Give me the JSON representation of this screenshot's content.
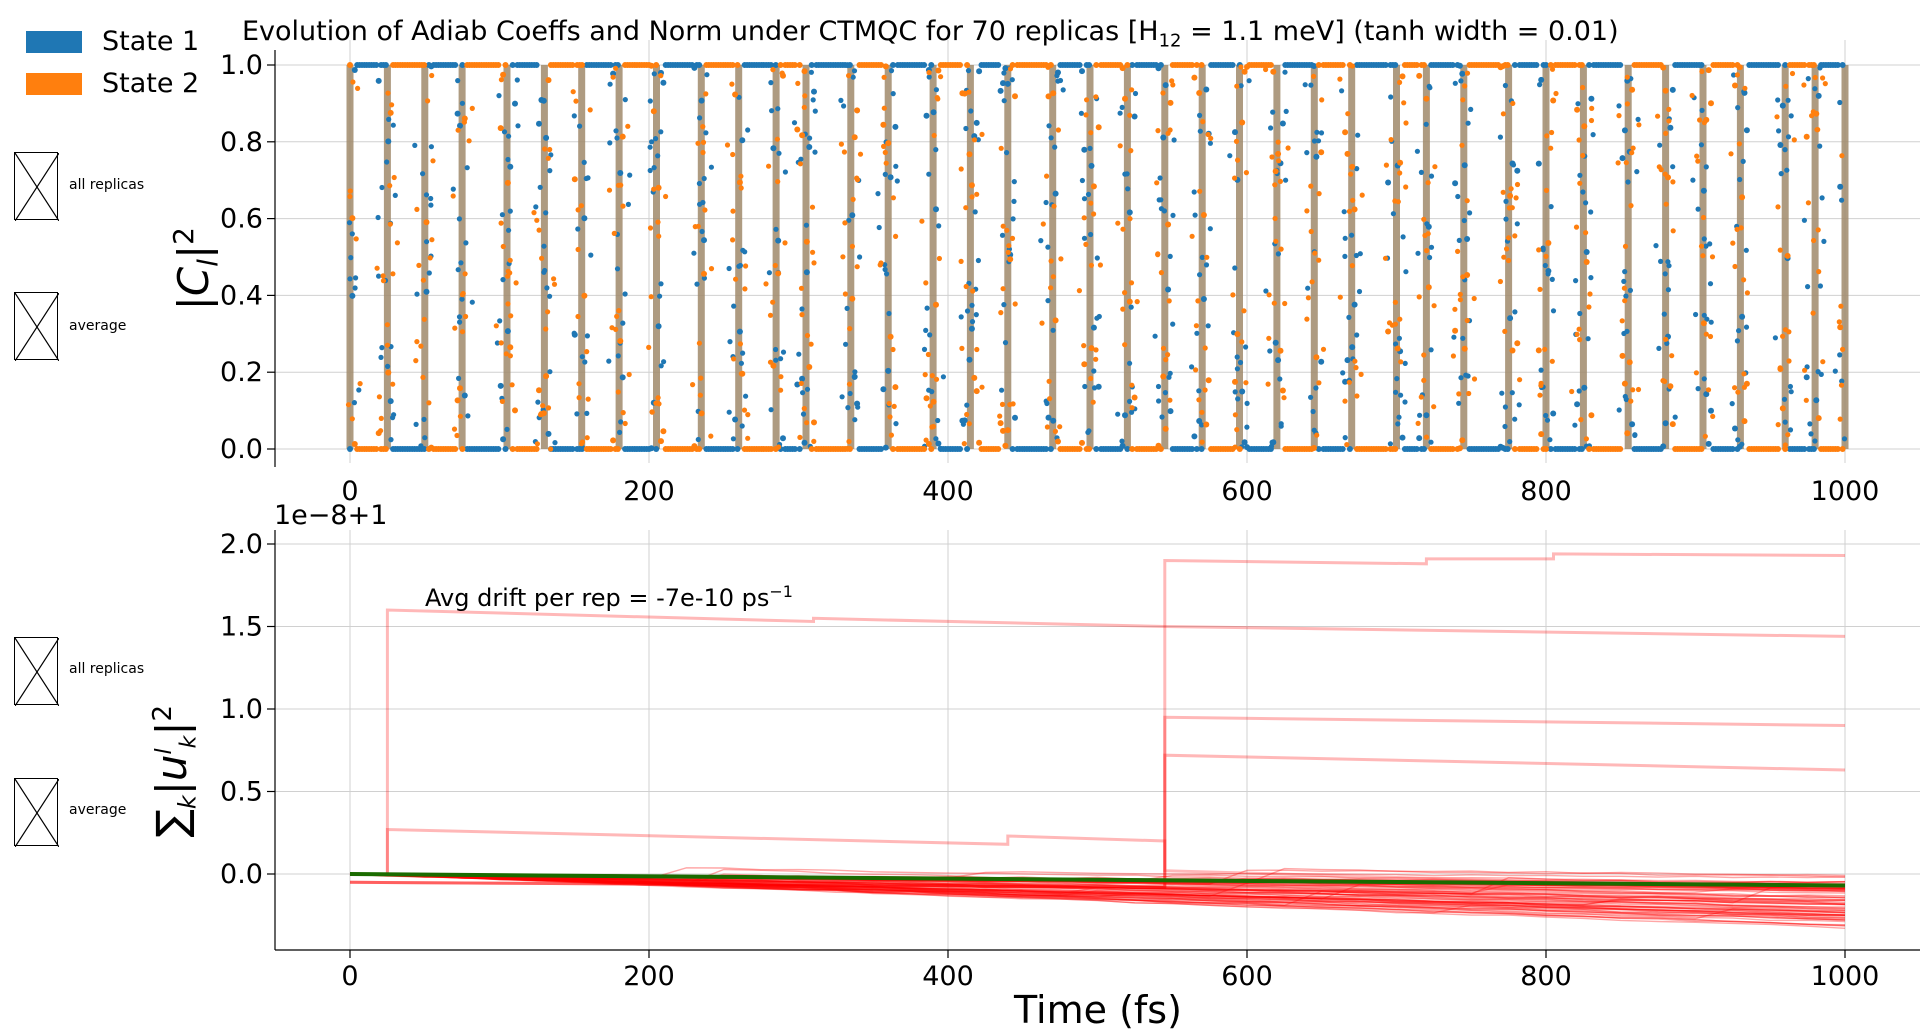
{
  "chart_data": [
    {
      "type": "scatter",
      "title_main": "Evolution of Adiab Coeffs and Norm under CTMQC for 70 replicas [H",
      "title_sub": "12",
      "title_rest": " = 1.1 meV]   (tanh width = 0.01)",
      "ylabel": "|C_l|^2",
      "xlim": [
        0,
        1000
      ],
      "ylim": [
        0,
        1
      ],
      "xticks": [
        "0",
        "200",
        "400",
        "600",
        "800",
        "1000"
      ],
      "yticks": [
        "0.0",
        "0.2",
        "0.4",
        "0.6",
        "0.8",
        "1.0"
      ],
      "grid": true,
      "legend": [
        "State 1",
        "State 2"
      ],
      "legend_placement": "top-left outside",
      "colors": {
        "state1": "#1f77b4",
        "state2": "#ff7f0e",
        "average": "#a0896b"
      },
      "hop_times": [
        0,
        25,
        50,
        75,
        105,
        130,
        155,
        180,
        205,
        235,
        260,
        285,
        305,
        335,
        360,
        390,
        415,
        440,
        470,
        495,
        520,
        545,
        570,
        595,
        620,
        645,
        670,
        700,
        720,
        745,
        775,
        800,
        825,
        855,
        880,
        905,
        930,
        960,
        980,
        1000
      ],
      "series": [
        {
          "name": "State 1",
          "values_description": "population alternates between 0 and 1"
        },
        {
          "name": "State 2",
          "values_description": "complement of State 1"
        }
      ],
      "side_labels": [
        "all replicas",
        "average"
      ]
    },
    {
      "type": "line",
      "offset_text": "1e−8+1",
      "xlabel": "Time (fs)",
      "ylabel": "∑|u_k^l|^2",
      "annotation": "Avg drift per rep = -7e-10 ps",
      "annotation_sup": "−1",
      "xlim": [
        0,
        1000
      ],
      "ylim": [
        -0.45,
        2.05
      ],
      "xticks": [
        "0",
        "200",
        "400",
        "600",
        "800",
        "1000"
      ],
      "yticks": [
        "0.0",
        "0.5",
        "1.0",
        "1.5",
        "2.0"
      ],
      "grid": true,
      "colors": {
        "replicas": "#ff0000",
        "average": "#1a6b00"
      },
      "highlighted_replicas": [
        {
          "x": [
            0,
            25,
            25,
            310,
            310,
            545,
            545,
            1000
          ],
          "y": [
            0,
            0,
            1.6,
            1.53,
            1.55,
            1.5,
            1.5,
            1.44
          ]
        },
        {
          "x": [
            0,
            545,
            545,
            720,
            720,
            805,
            805,
            1000
          ],
          "y": [
            -0.05,
            -0.08,
            1.9,
            1.88,
            1.91,
            1.91,
            1.94,
            1.93
          ]
        },
        {
          "x": [
            0,
            545,
            545,
            1000
          ],
          "y": [
            -0.05,
            -0.08,
            0.95,
            0.9
          ]
        },
        {
          "x": [
            0,
            545,
            545,
            1000
          ],
          "y": [
            -0.05,
            -0.08,
            0.72,
            0.63
          ]
        },
        {
          "x": [
            0,
            25,
            25,
            440,
            440,
            545,
            545,
            1000
          ],
          "y": [
            0,
            0,
            0.27,
            0.18,
            0.23,
            0.2,
            0.02,
            -0.1
          ]
        }
      ],
      "average_series": {
        "x": [
          0,
          1000
        ],
        "y": [
          0,
          -0.07
        ]
      },
      "side_labels": [
        "all replicas",
        "average"
      ]
    }
  ]
}
